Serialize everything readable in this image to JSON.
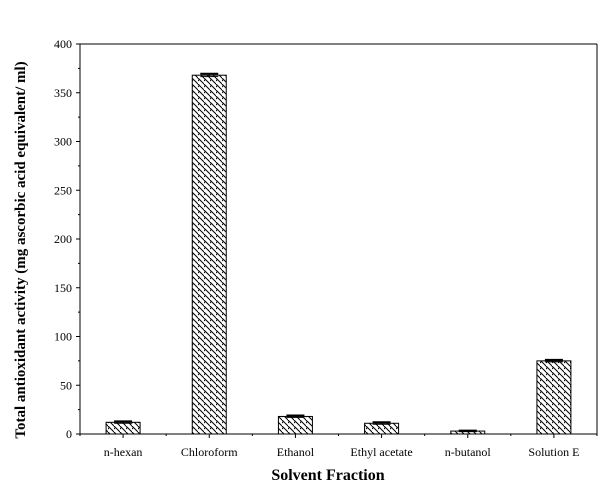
{
  "chart_data": {
    "type": "bar",
    "title": "",
    "xlabel": "Solvent Fraction",
    "ylabel": "Total antioxidant activity (mg ascorbic acid equivalent/ ml)",
    "categories": [
      "n-hexan",
      "Chloroform",
      "Ethanol",
      "Ethyl acetate",
      "n-butanol",
      "Solution E"
    ],
    "values": [
      12,
      368,
      18,
      11,
      3,
      75
    ],
    "errors": [
      1,
      1.5,
      1,
      1,
      0.5,
      1
    ],
    "ylim": [
      0,
      400
    ],
    "yticks": [
      0,
      50,
      100,
      150,
      200,
      250,
      300,
      350,
      400
    ],
    "grid": false,
    "legend": "none",
    "bar_fill": "hatched-diagonal",
    "colors": {
      "bar_stroke": "#000000",
      "hatch": "#000000",
      "axis": "#000000",
      "background": "#ffffff"
    }
  }
}
